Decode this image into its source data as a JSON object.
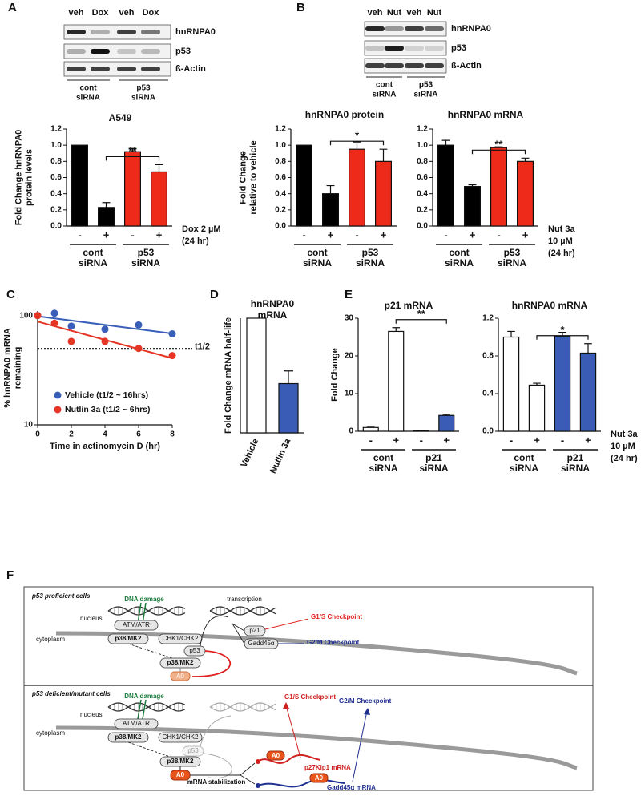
{
  "panel_labels": [
    "A",
    "B",
    "C",
    "D",
    "E",
    "F"
  ],
  "blots": {
    "A": {
      "lanes": [
        "veh",
        "Dox",
        "veh",
        "Dox"
      ],
      "rows": [
        "hnRNPA0",
        "p53",
        "ß-Actin"
      ],
      "groups": [
        [
          "cont",
          "siRNA"
        ],
        [
          "p53",
          "siRNA"
        ]
      ]
    },
    "B": {
      "lanes": [
        "veh",
        "Nut",
        "veh",
        "Nut"
      ],
      "rows": [
        "hnRNPA0",
        "p53",
        "ß-Actin"
      ],
      "groups": [
        [
          "cont",
          "siRNA"
        ],
        [
          "p53",
          "siRNA"
        ]
      ]
    }
  },
  "chart_data": [
    {
      "type": "bar",
      "title": "A549",
      "y_label": [
        "Fold Change hnRNPA0",
        "protein levels"
      ],
      "categories": [
        "-",
        "+",
        "-",
        "+"
      ],
      "values": [
        1.0,
        0.23,
        0.92,
        0.67
      ],
      "errors": [
        null,
        0.06,
        0.04,
        0.09
      ],
      "colors": [
        "#000000",
        "#000000",
        "#ee2a1b",
        "#ee2a1b"
      ],
      "ylim": [
        0,
        1.2
      ],
      "yticks": [
        {
          "value": 0,
          "label": "0.0"
        },
        {
          "value": 0.2,
          "label": "0.2"
        },
        {
          "value": 0.4,
          "label": "0.4"
        },
        {
          "value": 0.6,
          "label": "0.6"
        },
        {
          "value": 0.8,
          "label": "0.8"
        },
        {
          "value": 1.0,
          "label": "1.0"
        },
        {
          "value": 1.2,
          "label": "1.2"
        }
      ],
      "groups": [
        [
          "cont",
          "siRNA"
        ],
        [
          "p53",
          "siRNA"
        ]
      ],
      "treatment": [
        "Dox 2 µM",
        "(24 hr)"
      ],
      "significance": "**"
    },
    {
      "type": "bar",
      "title": "hnRNPA0 protein",
      "y_label": [
        "Fold Change",
        "relative to vehicle"
      ],
      "categories": [
        "-",
        "+",
        "-",
        "+"
      ],
      "values": [
        1.0,
        0.4,
        0.95,
        0.8
      ],
      "errors": [
        null,
        0.1,
        0.09,
        0.15
      ],
      "colors": [
        "#000000",
        "#000000",
        "#ee2a1b",
        "#ee2a1b"
      ],
      "ylim": [
        0,
        1.2
      ],
      "yticks": [
        {
          "value": 0,
          "label": "0.0"
        },
        {
          "value": 0.2,
          "label": "0.2"
        },
        {
          "value": 0.4,
          "label": "0.4"
        },
        {
          "value": 0.6,
          "label": "0.6"
        },
        {
          "value": 0.8,
          "label": "0.8"
        },
        {
          "value": 1.0,
          "label": "1.0"
        },
        {
          "value": 1.2,
          "label": "1.2"
        }
      ],
      "groups": [
        [
          "cont",
          "siRNA"
        ],
        [
          "p53",
          "siRNA"
        ]
      ],
      "significance": "*"
    },
    {
      "type": "bar",
      "title": "hnRNPA0 mRNA",
      "categories": [
        "-",
        "+",
        "-",
        "+"
      ],
      "values": [
        1.0,
        0.49,
        0.97,
        0.8
      ],
      "errors": [
        0.06,
        0.02,
        0.01,
        0.04
      ],
      "colors": [
        "#000000",
        "#000000",
        "#ee2a1b",
        "#ee2a1b"
      ],
      "ylim": [
        0,
        1.2
      ],
      "yticks": [
        {
          "value": 0,
          "label": "0.0"
        },
        {
          "value": 0.2,
          "label": "0.2"
        },
        {
          "value": 0.4,
          "label": "0.4"
        },
        {
          "value": 0.6,
          "label": "0.6"
        },
        {
          "value": 0.8,
          "label": "0.8"
        },
        {
          "value": 1.0,
          "label": "1.0"
        },
        {
          "value": 1.2,
          "label": "1.2"
        }
      ],
      "groups": [
        [
          "cont",
          "siRNA"
        ],
        [
          "p53",
          "siRNA"
        ]
      ],
      "treatment": [
        "Nut 3a",
        "10 µM",
        "(24 hr)"
      ],
      "significance": "**"
    },
    {
      "type": "scatter",
      "y_label": [
        "% hnRNPA0 mRNA",
        "remaining"
      ],
      "x_label": "Time in actinomycin D (hr)",
      "log_y": true,
      "xlim": [
        0,
        8
      ],
      "xticks": [
        0,
        2,
        4,
        6,
        8
      ],
      "ylim": [
        10,
        110
      ],
      "yticks": [
        10,
        100
      ],
      "legend": "lower left",
      "trend_lines": true,
      "half_life": {
        "value": 50,
        "label": "t1/2"
      },
      "series": [
        {
          "name": "Vehicle (t1/2 ~ 16hrs)",
          "color": "#3a5fb8",
          "x": [
            0,
            1,
            2,
            4,
            6,
            8
          ],
          "values": [
            100,
            105,
            80,
            75,
            82,
            68
          ]
        },
        {
          "name": "Nutlin 3a (t1/2 ~ 6hrs)",
          "color": "#e53525",
          "x": [
            0,
            1,
            2,
            4,
            6,
            8
          ],
          "values": [
            100,
            85,
            58,
            58,
            50,
            43
          ]
        }
      ]
    },
    {
      "type": "bar",
      "title": [
        "hnRNPA0",
        "mRNA"
      ],
      "y_label": [
        "Fold Change mRNA half-life"
      ],
      "categories": [
        "Vehicle",
        "Nutlin 3a"
      ],
      "values": [
        1.0,
        0.43
      ],
      "errors": [
        null,
        0.11
      ],
      "colors": [
        "#ffffff",
        "#3b5cb6"
      ],
      "ylim": [
        0,
        1
      ]
    },
    {
      "type": "bar",
      "title": "p21 mRNA",
      "y_label": [
        "Fold Change"
      ],
      "categories": [
        "-",
        "+",
        "-",
        "+"
      ],
      "values": [
        1.0,
        26.5,
        0.2,
        4.2
      ],
      "errors": [
        0.1,
        1.0,
        0.05,
        0.3
      ],
      "colors": [
        "#ffffff",
        "#ffffff",
        "#3b5cb6",
        "#3b5cb6"
      ],
      "ylim": [
        0,
        30
      ],
      "yticks": [
        0,
        10,
        20,
        30
      ],
      "groups": [
        [
          "cont",
          "siRNA"
        ],
        [
          "p21",
          "siRNA"
        ]
      ],
      "significance": "**"
    },
    {
      "type": "bar",
      "title": "hnRNPA0 mRNA",
      "categories": [
        "-",
        "+",
        "-",
        "+"
      ],
      "values": [
        1.0,
        0.49,
        1.01,
        0.83
      ],
      "errors": [
        0.06,
        0.02,
        0.04,
        0.1
      ],
      "colors": [
        "#ffffff",
        "#ffffff",
        "#3b5cb6",
        "#3b5cb6"
      ],
      "ylim": [
        0,
        1.2
      ],
      "yticks": [
        {
          "value": 0,
          "label": "0.0"
        },
        {
          "value": 0.4,
          "label": "0.4"
        },
        {
          "value": 0.8,
          "label": "0.8"
        },
        {
          "value": 1.2,
          "label": "1.2"
        }
      ],
      "groups": [
        [
          "cont",
          "siRNA"
        ],
        [
          "p21",
          "siRNA"
        ]
      ],
      "treatment": [
        "Nut 3a",
        "10 µM",
        "(24 hr)"
      ],
      "significance": "*"
    }
  ],
  "diagram": {
    "top": {
      "title": "p53 proficient cells",
      "dna_damage": "DNA damage",
      "transcription": "transcription",
      "nucleus": "nucleus",
      "cytoplasm": "cytoplasm",
      "atm": "ATM/ATR",
      "p38": "p38/MK2",
      "chk": "CHK1/CHK2",
      "p53": "p53",
      "p21": "p21",
      "gadd": "Gadd45α",
      "g1s": "G1/S Checkpoint",
      "g2m": "G2/M Checkpoint",
      "p38_cyto": "p38/MK2",
      "a0": "A0"
    },
    "bottom": {
      "title": "p53 deficient/mutant cells",
      "dna_damage": "DNA damage",
      "nucleus": "nucleus",
      "cytoplasm": "cytoplasm",
      "atm": "ATM/ATR",
      "p38": "p38/MK2",
      "chk": "CHK1/CHK2",
      "p53": "p53",
      "g1s": "G1/S Checkpoint",
      "g2m": "G2/M Checkpoint",
      "p38_cyto": "p38/MK2",
      "a0": "A0",
      "stabilization": "mRNA stabilization",
      "a0_p27": "A0",
      "p27": "p27Kip1 mRNA",
      "a0_gadd": "A0",
      "gadd_mrna": "Gadd45α mRNA"
    }
  }
}
